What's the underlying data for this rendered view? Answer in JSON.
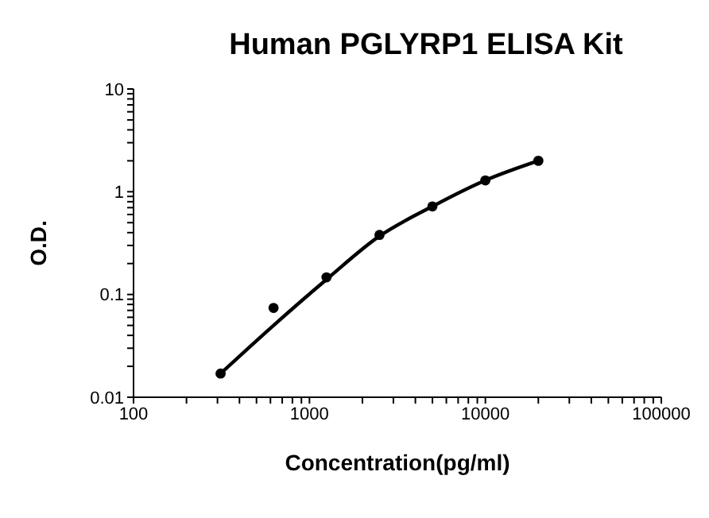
{
  "chart_data": {
    "type": "scatter",
    "title": "Human PGLYRP1 ELISA Kit",
    "xlabel": "Concentration(pg/ml)",
    "ylabel": "O.D.",
    "log": "xy",
    "xlim": [
      100,
      100000
    ],
    "xticks": [
      100,
      {
        "value": 200,
        "label": null
      },
      {
        "value": 300,
        "label": null
      },
      {
        "value": 400,
        "label": null
      },
      {
        "value": 500,
        "label": null
      },
      {
        "value": 600,
        "label": null
      },
      {
        "value": 700,
        "label": null
      },
      {
        "value": 800,
        "label": null
      },
      {
        "value": 900,
        "label": null
      },
      1000,
      {
        "value": 2000,
        "label": null
      },
      {
        "value": 3000,
        "label": null
      },
      {
        "value": 4000,
        "label": null
      },
      {
        "value": 5000,
        "label": null
      },
      {
        "value": 6000,
        "label": null
      },
      {
        "value": 7000,
        "label": null
      },
      {
        "value": 8000,
        "label": null
      },
      {
        "value": 9000,
        "label": null
      },
      10000,
      {
        "value": 20000,
        "label": null
      },
      {
        "value": 30000,
        "label": null
      },
      {
        "value": 40000,
        "label": null
      },
      {
        "value": 50000,
        "label": null
      },
      {
        "value": 60000,
        "label": null
      },
      {
        "value": 70000,
        "label": null
      },
      {
        "value": 80000,
        "label": null
      },
      {
        "value": 90000,
        "label": null
      },
      100000
    ],
    "ylim": [
      0.01,
      10
    ],
    "yticks": [
      0.01,
      {
        "value": 0.02,
        "label": null
      },
      {
        "value": 0.03,
        "label": null
      },
      {
        "value": 0.04,
        "label": null
      },
      {
        "value": 0.05,
        "label": null
      },
      {
        "value": 0.06,
        "label": null
      },
      {
        "value": 0.07,
        "label": null
      },
      {
        "value": 0.08,
        "label": null
      },
      {
        "value": 0.09,
        "label": null
      },
      0.1,
      {
        "value": 0.2,
        "label": null
      },
      {
        "value": 0.3,
        "label": null
      },
      {
        "value": 0.4,
        "label": null
      },
      {
        "value": 0.5,
        "label": null
      },
      {
        "value": 0.6,
        "label": null
      },
      {
        "value": 0.7,
        "label": null
      },
      {
        "value": 0.8,
        "label": null
      },
      {
        "value": 0.9,
        "label": null
      },
      1,
      {
        "value": 2,
        "label": null
      },
      {
        "value": 3,
        "label": null
      },
      {
        "value": 4,
        "label": null
      },
      {
        "value": 5,
        "label": null
      },
      {
        "value": 6,
        "label": null
      },
      {
        "value": 7,
        "label": null
      },
      {
        "value": 8,
        "label": null
      },
      {
        "value": 9,
        "label": null
      },
      10
    ],
    "series": [
      {
        "marker": "circle",
        "color": "#000000",
        "x": [
          312.5,
          625,
          1250,
          2500,
          5000,
          10000,
          20000
        ],
        "values": [
          0.017,
          0.074,
          0.147,
          0.38,
          0.72,
          1.29,
          2.0
        ]
      },
      {
        "type": "line",
        "marker": "none",
        "line_style": "solid",
        "color": "#000000",
        "x": [
          312.5,
          625,
          1250,
          2500,
          5000,
          10000,
          20000
        ],
        "values": [
          0.017,
          0.05,
          0.14,
          0.37,
          0.72,
          1.29,
          2.0
        ]
      }
    ]
  }
}
